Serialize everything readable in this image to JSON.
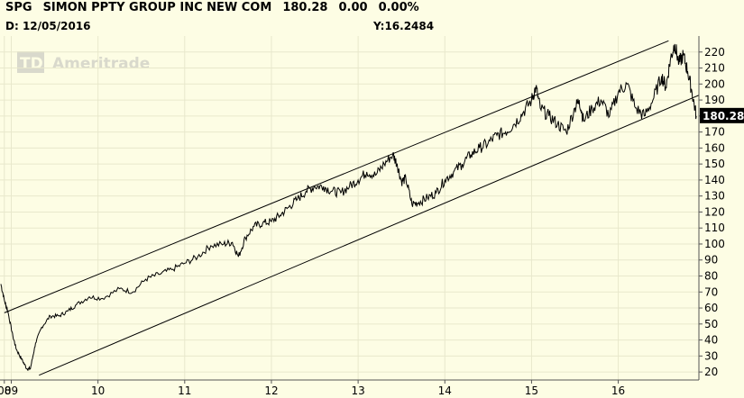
{
  "header": {
    "symbol": "SPG",
    "name": "SIMON PPTY GROUP INC NEW COM",
    "last": "180.28",
    "change": "0.00",
    "change_pct": "0.00%",
    "date_label": "D:",
    "date": "12/05/2016",
    "y_label": "Y:16.2484"
  },
  "watermark": {
    "logo": "TD",
    "text": "Ameritrade"
  },
  "last_price_tag": "180.28",
  "chart_data": {
    "type": "line",
    "ylim": [
      15,
      230
    ],
    "y_ticks": [
      20,
      30,
      40,
      50,
      60,
      70,
      80,
      90,
      100,
      110,
      120,
      130,
      140,
      150,
      160,
      170,
      180,
      190,
      200,
      210,
      220
    ],
    "x_ticks": [
      {
        "label": "08",
        "x": 2008.92
      },
      {
        "label": "09",
        "x": 2009.0
      },
      {
        "label": "10",
        "x": 2010.0
      },
      {
        "label": "11",
        "x": 2011.0
      },
      {
        "label": "12",
        "x": 2012.0
      },
      {
        "label": "13",
        "x": 2013.0
      },
      {
        "label": "14",
        "x": 2014.0
      },
      {
        "label": "15",
        "x": 2015.0
      },
      {
        "label": "16",
        "x": 2016.0
      }
    ],
    "xlim": [
      2008.87,
      2016.93
    ],
    "series": [
      {
        "x": [
          2008.88,
          2008.92,
          2008.96,
          2009.02,
          2009.06,
          2009.12,
          2009.18,
          2009.22,
          2009.28,
          2009.35,
          2009.45,
          2009.55,
          2009.65,
          2009.75,
          2009.9,
          2010.05,
          2010.25,
          2010.4,
          2010.55,
          2010.7,
          2010.85,
          2011.0,
          2011.15,
          2011.3,
          2011.45,
          2011.55,
          2011.62,
          2011.7,
          2011.8,
          2011.9,
          2012.0,
          2012.1,
          2012.2,
          2012.3,
          2012.4,
          2012.5,
          2012.6,
          2012.7,
          2012.8,
          2012.9,
          2013.0,
          2013.1,
          2013.2,
          2013.3,
          2013.4,
          2013.45,
          2013.5,
          2013.55,
          2013.62,
          2013.7,
          2013.8,
          2013.9,
          2014.0,
          2014.1,
          2014.2,
          2014.3,
          2014.4,
          2014.5,
          2014.6,
          2014.7,
          2014.8,
          2014.9,
          2015.0,
          2015.05,
          2015.1,
          2015.2,
          2015.3,
          2015.4,
          2015.5,
          2015.55,
          2015.6,
          2015.7,
          2015.8,
          2015.9,
          2016.0,
          2016.1,
          2016.2,
          2016.3,
          2016.4,
          2016.5,
          2016.55,
          2016.6,
          2016.65,
          2016.7,
          2016.75,
          2016.8,
          2016.85,
          2016.9
        ],
        "values": [
          75,
          65,
          58,
          42,
          34,
          28,
          22,
          22,
          38,
          48,
          55,
          55,
          58,
          62,
          67,
          66,
          72,
          70,
          78,
          81,
          84,
          88,
          92,
          99,
          100,
          101,
          92,
          104,
          111,
          113,
          114,
          118,
          123,
          128,
          133,
          136,
          136,
          133,
          132,
          136,
          140,
          145,
          143,
          150,
          156,
          150,
          139,
          141,
          125,
          126,
          129,
          132,
          140,
          145,
          150,
          156,
          160,
          163,
          168,
          170,
          175,
          182,
          190,
          198,
          185,
          180,
          175,
          170,
          185,
          190,
          177,
          185,
          190,
          180,
          195,
          200,
          185,
          180,
          190,
          205,
          198,
          215,
          225,
          213,
          218,
          208,
          195,
          180
        ]
      }
    ],
    "channel": {
      "upper": {
        "x": [
          2008.92,
          2016.58
        ],
        "y": [
          57,
          227
        ]
      },
      "lower": {
        "x": [
          2009.32,
          2016.93
        ],
        "y": [
          18,
          193
        ]
      }
    }
  }
}
